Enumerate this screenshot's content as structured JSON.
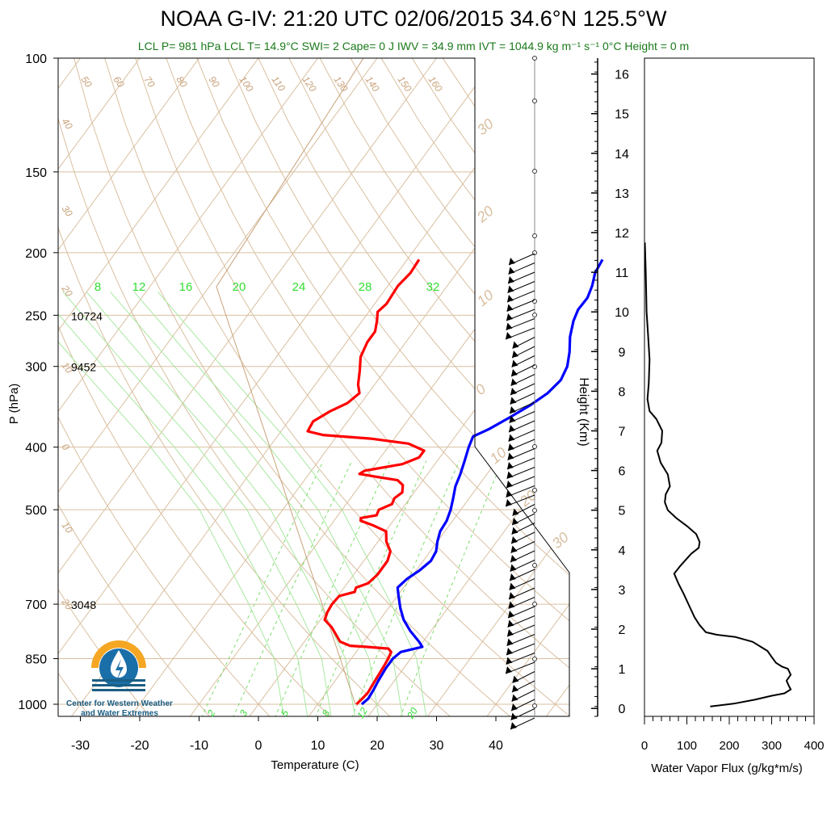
{
  "header": {
    "title": "NOAA G-IV: 21:20 UTC 02/06/2015  34.6°N 125.5°W",
    "subtitle": "LCL P= 981 hPa  LCL T= 14.9°C  SWI= 2  Cape= 0 J  IWV = 34.9 mm  IVT = 1044.9 kg m⁻¹ s⁻¹  0°C Height = 0 m"
  },
  "logo": {
    "caption_line1": "Center for Western Weather",
    "caption_line2": "and Water Extremes",
    "colors": {
      "sun": "#f5a623",
      "drop": "#1b6fa8",
      "waves": "#1b5e84"
    }
  },
  "chart_data": [
    {
      "type": "line",
      "name": "skew-T",
      "xlabel": "Temperature (C)",
      "ylabel": "P (hPa)",
      "xlim": [
        -35,
        52
      ],
      "ylim": [
        1050,
        100
      ],
      "x_ticks": [
        -30,
        -20,
        -10,
        0,
        10,
        20,
        30,
        40
      ],
      "p_ticks": [
        100,
        150,
        200,
        250,
        300,
        400,
        500,
        700,
        850,
        1000
      ],
      "height_labels": [
        {
          "p": 250,
          "text": "10724"
        },
        {
          "p": 300,
          "text": "9452"
        },
        {
          "p": 700,
          "text": "3048"
        }
      ],
      "isotherm_labels": [
        "50",
        "60",
        "70",
        "80",
        "90",
        "100",
        "110",
        "120",
        "130",
        "140",
        "150",
        "160"
      ],
      "side_temp_labels": [
        "40",
        "30",
        "20",
        "10",
        "0",
        "10",
        "20"
      ],
      "mixing_ratio_labels_top": [
        "8",
        "12",
        "16",
        "20",
        "24",
        "28",
        "32"
      ],
      "mixing_ratio_labels_bottom": [
        "2",
        "3",
        "5",
        "8",
        "12",
        "20"
      ],
      "right_labels": [
        "30",
        "20",
        "10",
        "0",
        "10",
        "20",
        "30"
      ],
      "series": [
        {
          "kind": "temperature",
          "color": "#0000ff",
          "points": [
            [
              1000,
              17.4
            ],
            [
              980,
              17.8
            ],
            [
              950,
              17.6
            ],
            [
              920,
              17.3
            ],
            [
              880,
              17.0
            ],
            [
              850,
              17.0
            ],
            [
              830,
              17.5
            ],
            [
              815,
              20.5
            ],
            [
              800,
              19.3
            ],
            [
              770,
              16.5
            ],
            [
              740,
              14.0
            ],
            [
              710,
              12.0
            ],
            [
              680,
              10.2
            ],
            [
              660,
              9.0
            ],
            [
              640,
              9.5
            ],
            [
              620,
              10.6
            ],
            [
              600,
              11.3
            ],
            [
              580,
              11.0
            ],
            [
              560,
              10.0
            ],
            [
              540,
              9.2
            ],
            [
              520,
              9.0
            ],
            [
              500,
              8.3
            ],
            [
              480,
              7.3
            ],
            [
              460,
              6.2
            ],
            [
              440,
              5.5
            ],
            [
              420,
              4.6
            ],
            [
              400,
              3.6
            ],
            [
              385,
              3.0
            ],
            [
              375,
              4.8
            ],
            [
              360,
              6.8
            ],
            [
              345,
              8.7
            ],
            [
              330,
              10.2
            ],
            [
              315,
              10.8
            ],
            [
              300,
              10.2
            ],
            [
              285,
              8.8
            ],
            [
              270,
              7.0
            ],
            [
              255,
              5.6
            ],
            [
              245,
              5.0
            ],
            [
              235,
              5.1
            ],
            [
              225,
              4.4
            ],
            [
              215,
              3.3
            ],
            [
              205,
              2.9
            ]
          ]
        },
        {
          "kind": "dewpoint",
          "color": "#ff0000",
          "points": [
            [
              1000,
              16.5
            ],
            [
              980,
              16.8
            ],
            [
              960,
              17.0
            ],
            [
              930,
              16.8
            ],
            [
              900,
              16.6
            ],
            [
              870,
              16.4
            ],
            [
              850,
              16.2
            ],
            [
              830,
              15.9
            ],
            [
              820,
              15.0
            ],
            [
              815,
              11.0
            ],
            [
              812,
              8.2
            ],
            [
              800,
              6.0
            ],
            [
              760,
              2.8
            ],
            [
              740,
              0.7
            ],
            [
              720,
              0.2
            ],
            [
              700,
              0.0
            ],
            [
              680,
              0.2
            ],
            [
              670,
              2.3
            ],
            [
              660,
              2.0
            ],
            [
              650,
              3.5
            ],
            [
              630,
              4.0
            ],
            [
              600,
              4.0
            ],
            [
              580,
              3.3
            ],
            [
              560,
              1.4
            ],
            [
              540,
              0.1
            ],
            [
              528,
              -3.0
            ],
            [
              520,
              -5.5
            ],
            [
              515,
              -5.8
            ],
            [
              510,
              -3.5
            ],
            [
              500,
              -3.8
            ],
            [
              490,
              -2.3
            ],
            [
              480,
              -2.6
            ],
            [
              470,
              -2.0
            ],
            [
              458,
              -2.8
            ],
            [
              450,
              -4.3
            ],
            [
              445,
              -8.0
            ],
            [
              440,
              -11.5
            ],
            [
              435,
              -11.0
            ],
            [
              425,
              -5.5
            ],
            [
              415,
              -3.5
            ],
            [
              405,
              -3.5
            ],
            [
              395,
              -7.0
            ],
            [
              388,
              -14.0
            ],
            [
              383,
              -22.5
            ],
            [
              378,
              -25.5
            ],
            [
              365,
              -25.8
            ],
            [
              352,
              -24.2
            ],
            [
              342,
              -22.3
            ],
            [
              330,
              -21.5
            ],
            [
              320,
              -22.8
            ],
            [
              305,
              -24.2
            ],
            [
              290,
              -25.8
            ],
            [
              275,
              -26.5
            ],
            [
              265,
              -26.5
            ],
            [
              255,
              -27.5
            ],
            [
              247,
              -28.5
            ],
            [
              240,
              -28.0
            ],
            [
              225,
              -28.3
            ],
            [
              215,
              -27.8
            ],
            [
              205,
              -28.0
            ]
          ]
        }
      ]
    },
    {
      "type": "line",
      "name": "water-vapor-flux",
      "xlabel": "Water Vapor Flux (g/kg*m/s)",
      "ylabel": "Height (Km)",
      "xlim": [
        0,
        400
      ],
      "ylim": [
        -0.2,
        16.4
      ],
      "x_ticks": [
        0,
        100,
        200,
        300,
        400
      ],
      "y_ticks": [
        0,
        1,
        2,
        3,
        4,
        5,
        6,
        7,
        8,
        9,
        10,
        11,
        12,
        13,
        14,
        15,
        16
      ],
      "series": [
        {
          "color": "#000000",
          "points": [
            [
              155,
              0.05
            ],
            [
              210,
              0.12
            ],
            [
              260,
              0.22
            ],
            [
              300,
              0.32
            ],
            [
              330,
              0.38
            ],
            [
              345,
              0.48
            ],
            [
              340,
              0.58
            ],
            [
              335,
              0.7
            ],
            [
              345,
              0.85
            ],
            [
              338,
              1.0
            ],
            [
              325,
              1.05
            ],
            [
              310,
              1.15
            ],
            [
              300,
              1.3
            ],
            [
              290,
              1.45
            ],
            [
              275,
              1.55
            ],
            [
              255,
              1.68
            ],
            [
              215,
              1.8
            ],
            [
              170,
              1.86
            ],
            [
              145,
              1.92
            ],
            [
              130,
              2.1
            ],
            [
              118,
              2.3
            ],
            [
              105,
              2.6
            ],
            [
              92,
              2.9
            ],
            [
              80,
              3.15
            ],
            [
              70,
              3.4
            ],
            [
              85,
              3.6
            ],
            [
              110,
              3.9
            ],
            [
              128,
              4.05
            ],
            [
              130,
              4.2
            ],
            [
              122,
              4.4
            ],
            [
              100,
              4.6
            ],
            [
              75,
              4.8
            ],
            [
              55,
              5.0
            ],
            [
              48,
              5.2
            ],
            [
              50,
              5.4
            ],
            [
              60,
              5.6
            ],
            [
              55,
              5.9
            ],
            [
              38,
              6.2
            ],
            [
              30,
              6.5
            ],
            [
              40,
              6.7
            ],
            [
              42,
              7.0
            ],
            [
              28,
              7.3
            ],
            [
              12,
              7.5
            ],
            [
              7,
              7.8
            ],
            [
              10,
              8.2
            ],
            [
              12,
              8.8
            ],
            [
              8,
              9.5
            ],
            [
              5,
              10.0
            ],
            [
              3,
              11.0
            ],
            [
              1,
              11.75
            ]
          ]
        }
      ]
    }
  ]
}
